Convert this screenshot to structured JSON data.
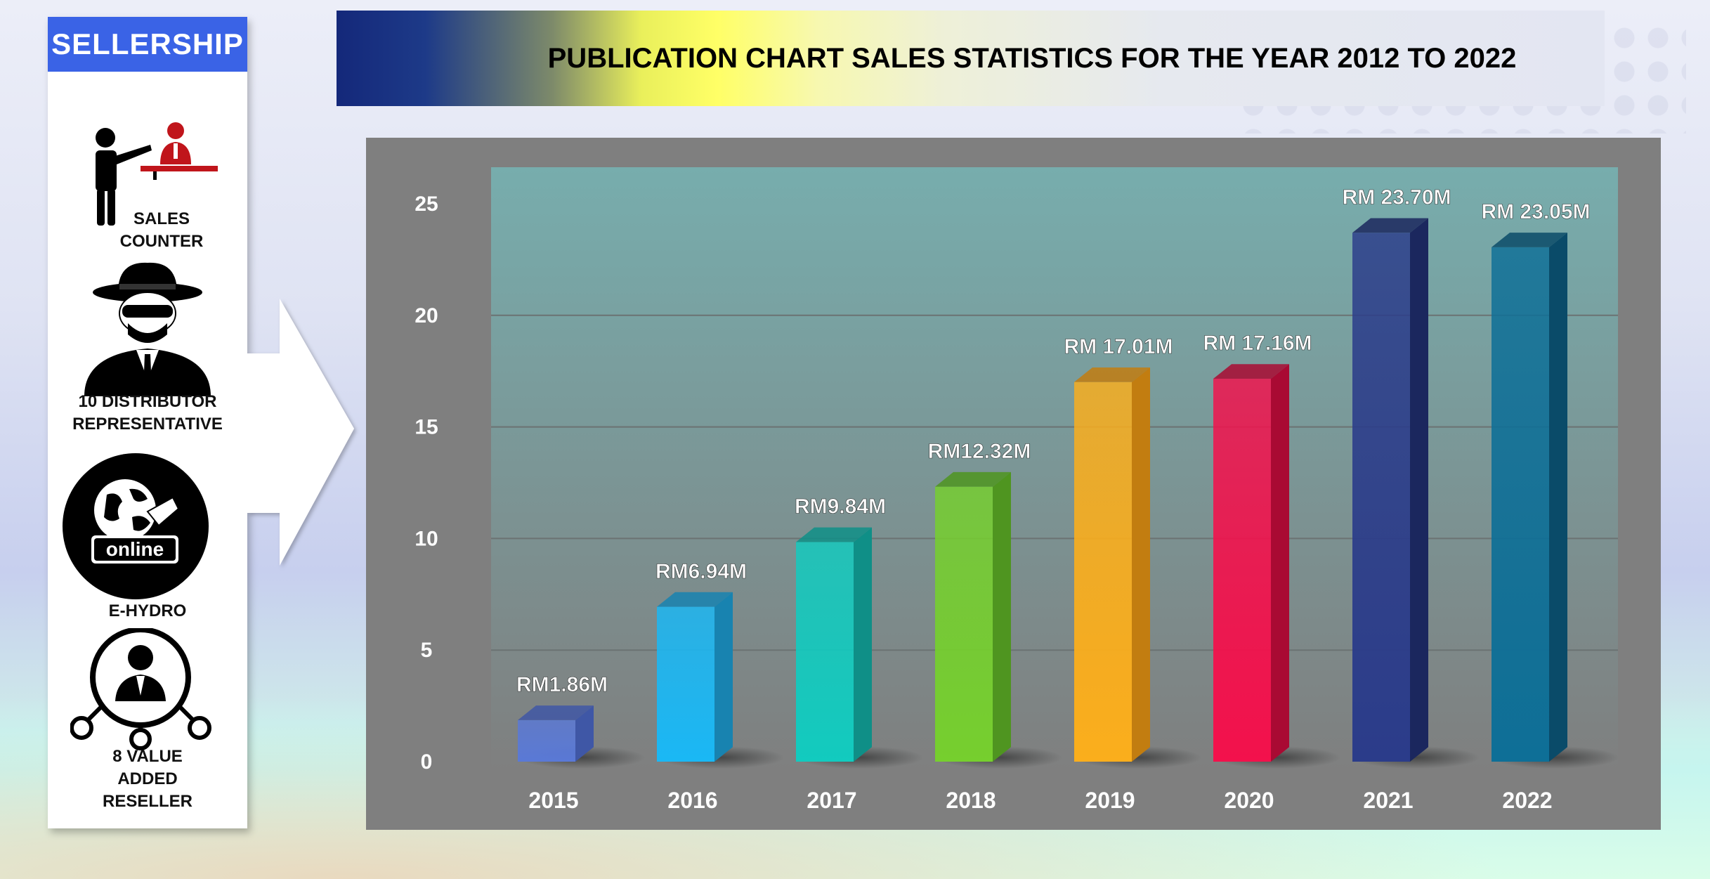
{
  "title": "PUBLICATION CHART SALES STATISTICS FOR THE YEAR 2012 TO 2022",
  "sidebar": {
    "header": "SELLERSHIP",
    "items": [
      {
        "label_lines": [
          "SALES",
          "COUNTER"
        ],
        "icon": "sales-counter-icon"
      },
      {
        "label_lines": [
          "10 DISTRIBUTOR",
          "REPRESENTATIVE"
        ],
        "icon": "distributor-agent-icon"
      },
      {
        "label_lines": [
          "E-HYDRO"
        ],
        "icon_text": "online",
        "icon": "online-globe-icon"
      },
      {
        "label_lines": [
          "8 VALUE",
          "ADDED",
          "RESELLER"
        ],
        "icon": "reseller-network-icon"
      }
    ]
  },
  "chart_data": {
    "type": "bar",
    "categories": [
      "2015",
      "2016",
      "2017",
      "2018",
      "2019",
      "2020",
      "2021",
      "2022"
    ],
    "values": [
      1.86,
      6.94,
      9.84,
      12.32,
      17.01,
      17.16,
      23.7,
      23.05
    ],
    "data_labels": [
      "RM1.86M",
      "RM6.94M",
      "RM9.84M",
      "RM12.32M",
      "RM 17.01M",
      "RM 17.16M",
      "RM 23.70M",
      "RM 23.05M"
    ],
    "bar_colors": [
      "#5a79d6",
      "#1ab8f5",
      "#12cbbf",
      "#76cf2e",
      "#fbae1c",
      "#f3114c",
      "#2b3c8a",
      "#0e6f97"
    ],
    "side_colors": [
      "#3f57a6",
      "#1883b0",
      "#0f8f87",
      "#4f9520",
      "#c27d10",
      "#a90a33",
      "#1b275e",
      "#0a4b69"
    ],
    "yticks": [
      "0",
      "5",
      "10",
      "15",
      "20",
      "25"
    ],
    "ylim": [
      0,
      25
    ],
    "grid": true,
    "legend": "none",
    "colors": {
      "frame": "#7f7f7f",
      "plot_top": "#77adad",
      "plot_bottom": "#7f7f7f",
      "gridline": "#6b7272"
    }
  }
}
